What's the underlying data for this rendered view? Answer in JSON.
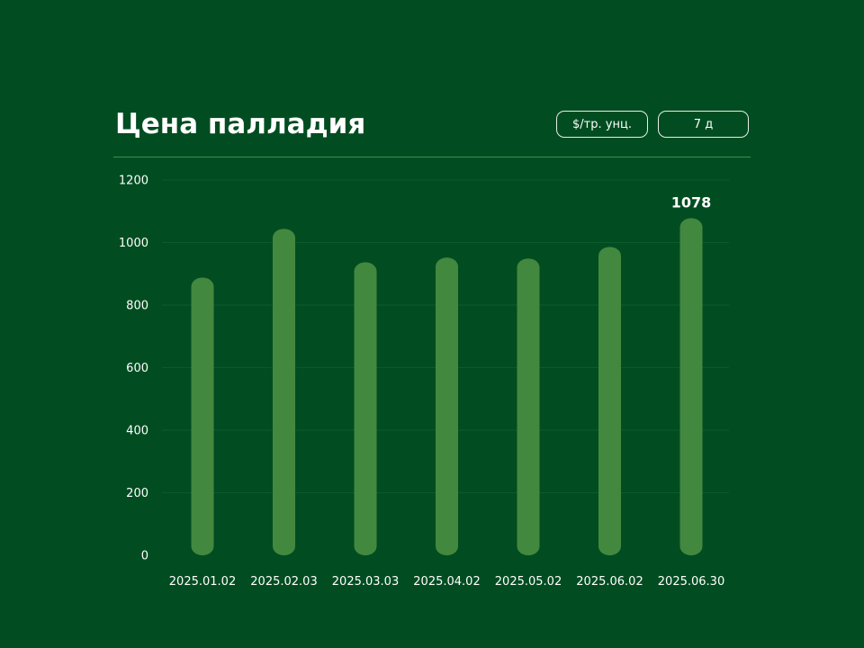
{
  "header": {
    "title": "Цена палладия",
    "unit_button": "$/тр. унц.",
    "range_button": "7 д"
  },
  "colors": {
    "background": "#014d21",
    "bar": "#43883f",
    "gridline": "#0d5a2c"
  },
  "chart_data": {
    "type": "bar",
    "title": "Цена палладия",
    "xlabel": "",
    "ylabel": "",
    "categories": [
      "2025.01.02",
      "2025.02.03",
      "2025.03.03",
      "2025.04.02",
      "2025.05.02",
      "2025.06.02",
      "2025.06.30"
    ],
    "values": [
      888,
      1044,
      937,
      952,
      949,
      986,
      1078
    ],
    "ylim": [
      0,
      1200
    ],
    "yticks": [
      0,
      200,
      400,
      600,
      800,
      1000,
      1200
    ],
    "highlight_label": {
      "index": 6,
      "text": "1078"
    },
    "grid": true,
    "legend": "none"
  }
}
